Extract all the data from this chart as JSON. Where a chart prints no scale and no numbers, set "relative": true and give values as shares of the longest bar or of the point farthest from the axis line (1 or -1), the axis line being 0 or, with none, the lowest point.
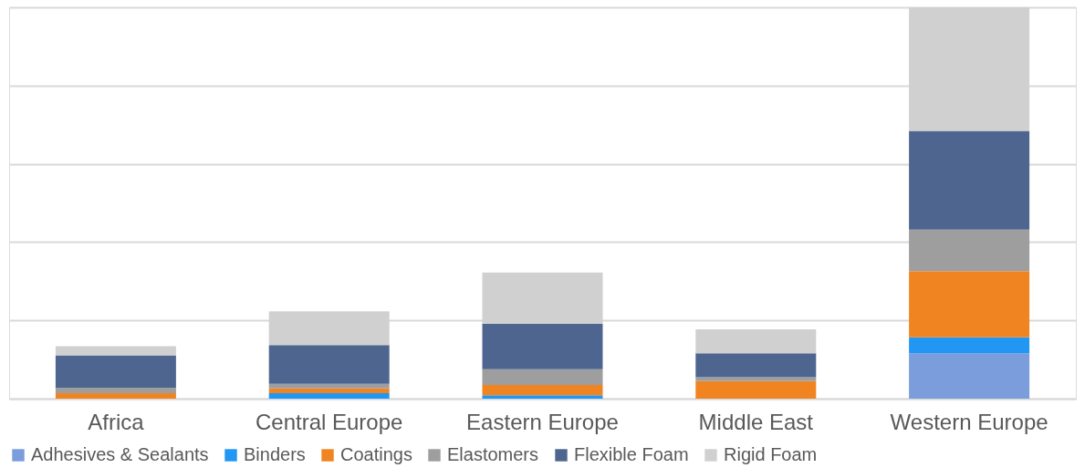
{
  "chart_data": {
    "type": "bar",
    "stacked": true,
    "relative": true,
    "grid": "y",
    "legend": "bottom",
    "categories": [
      "Africa",
      "Central Europe",
      "Eastern Europe",
      "Middle East",
      "Western Europe"
    ],
    "series": [
      {
        "name": "Adhesives & Sealants",
        "color": "#7b9ddb",
        "values": [
          0,
          0,
          0,
          0,
          0.116
        ]
      },
      {
        "name": "Binders",
        "color": "#2196f3",
        "values": [
          0,
          0.014,
          0.009,
          0,
          0.041
        ]
      },
      {
        "name": "Coatings",
        "color": "#f08421",
        "values": [
          0.014,
          0.012,
          0.026,
          0.045,
          0.169
        ]
      },
      {
        "name": "Elastomers",
        "color": "#9e9e9e",
        "values": [
          0.014,
          0.012,
          0.04,
          0.01,
          0.106
        ]
      },
      {
        "name": "Flexible Foam",
        "color": "#4e668f",
        "values": [
          0.083,
          0.099,
          0.117,
          0.061,
          0.252
        ]
      },
      {
        "name": "Rigid Foam",
        "color": "#d0d0d0",
        "values": [
          0.023,
          0.086,
          0.13,
          0.061,
          0.316
        ]
      }
    ]
  }
}
